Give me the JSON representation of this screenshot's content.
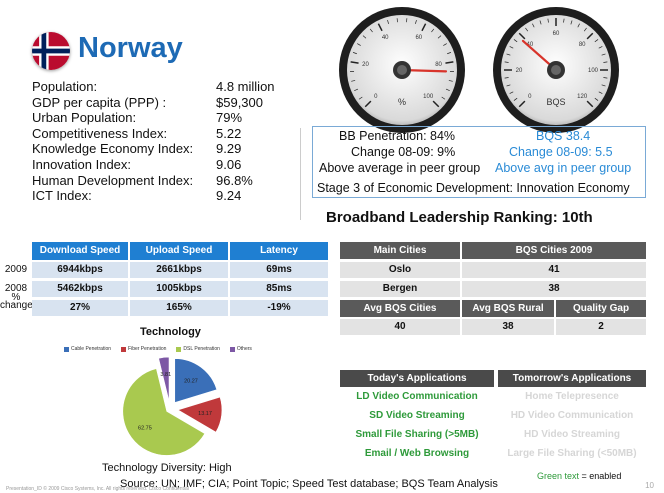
{
  "header": {
    "country": "Norway",
    "flag_icon": "norway-flag-icon"
  },
  "stats": [
    {
      "label": "Population:",
      "value": "4.8 million"
    },
    {
      "label": "GDP per capita (PPP) :",
      "value": "$59,300"
    },
    {
      "label": "Urban Population:",
      "value": "79%"
    },
    {
      "label": "Competitiveness Index:",
      "value": "5.22"
    },
    {
      "label": "Knowledge Economy Index:",
      "value": "9.29"
    },
    {
      "label": "Innovation Index:",
      "value": "9.06"
    },
    {
      "label": "Human Development Index:",
      "value": "96.8%"
    },
    {
      "label": "ICT Index:",
      "value": "9.24"
    }
  ],
  "gauges": [
    {
      "label": "%",
      "ticks": [
        "0",
        "20",
        "40",
        "60",
        "80",
        "100"
      ],
      "level": 84
    },
    {
      "label": "BQS",
      "ticks": [
        "0",
        "20",
        "40",
        "60",
        "80",
        "100",
        "120"
      ],
      "level": 38.4
    }
  ],
  "info": {
    "bb_penetration": "BB Penetration: 84%",
    "change_left": "Change 08-09: 9%",
    "above_left": "Above average in peer group",
    "bqs": "BQS 38.4",
    "change_right": "Change 08-09:  5.5",
    "above_right": "Above avg in peer group",
    "stage": "Stage 3 of Economic Development: Innovation Economy"
  },
  "ranking": "Broadband Leadership Ranking: 10th",
  "speed_table": {
    "headers": [
      "Download Speed",
      "Upload Speed",
      "Latency"
    ],
    "rows": [
      {
        "label": "2009",
        "cells": [
          "6944kbps",
          "2661kbps",
          "69ms"
        ]
      },
      {
        "label": "2008",
        "cells": [
          "5462kbps",
          "1005kbps",
          "85ms"
        ]
      },
      {
        "label": "% change",
        "cells": [
          "27%",
          "165%",
          "-19%"
        ]
      }
    ]
  },
  "cities_table": {
    "headers": [
      "Main Cities",
      "BQS Cities 2009"
    ],
    "rows": [
      [
        "Oslo",
        "41"
      ],
      [
        "Bergen",
        "38"
      ]
    ],
    "sub_headers": [
      "Avg BQS Cities",
      "Avg BQS Rural",
      "Quality Gap"
    ],
    "sub_values": [
      "40",
      "38",
      "2"
    ]
  },
  "technology": {
    "title": "Technology",
    "diversity": "Technology Diversity: High"
  },
  "chart_data": {
    "type": "pie",
    "title": "",
    "categories": [
      "Cable Penetration",
      "Fiber Penetration",
      "DSL Penetration",
      "Others"
    ],
    "values": [
      20.27,
      13.17,
      62.75,
      3.81
    ],
    "labels": [
      "20.27",
      "13.17",
      "62.75",
      "3.81"
    ],
    "colors": [
      "#3a6fb8",
      "#c0393b",
      "#a9c94f",
      "#7d58a5"
    ]
  },
  "applications": {
    "headers": [
      "Today's Applications",
      "Tomorrow's Applications"
    ],
    "today": [
      "LD Video Communication",
      "SD Video Streaming",
      "Small File Sharing (>5MB)",
      "Email / Web Browsing"
    ],
    "tomorrow": [
      "Home Telepresence",
      "HD Video Communication",
      "HD Video Streaming",
      "Large File Sharing (<50MB)"
    ],
    "legend_green": "Green text",
    "legend_rest": " = enabled"
  },
  "source": "Source: UN; IMF; CIA; Point Topic; Speed Test database; BQS Team Analysis",
  "footer_left": "Presentation_ID      © 2009 Cisco Systems, Inc. All rights reserved.      Cisco Confidential",
  "page_number": "10"
}
